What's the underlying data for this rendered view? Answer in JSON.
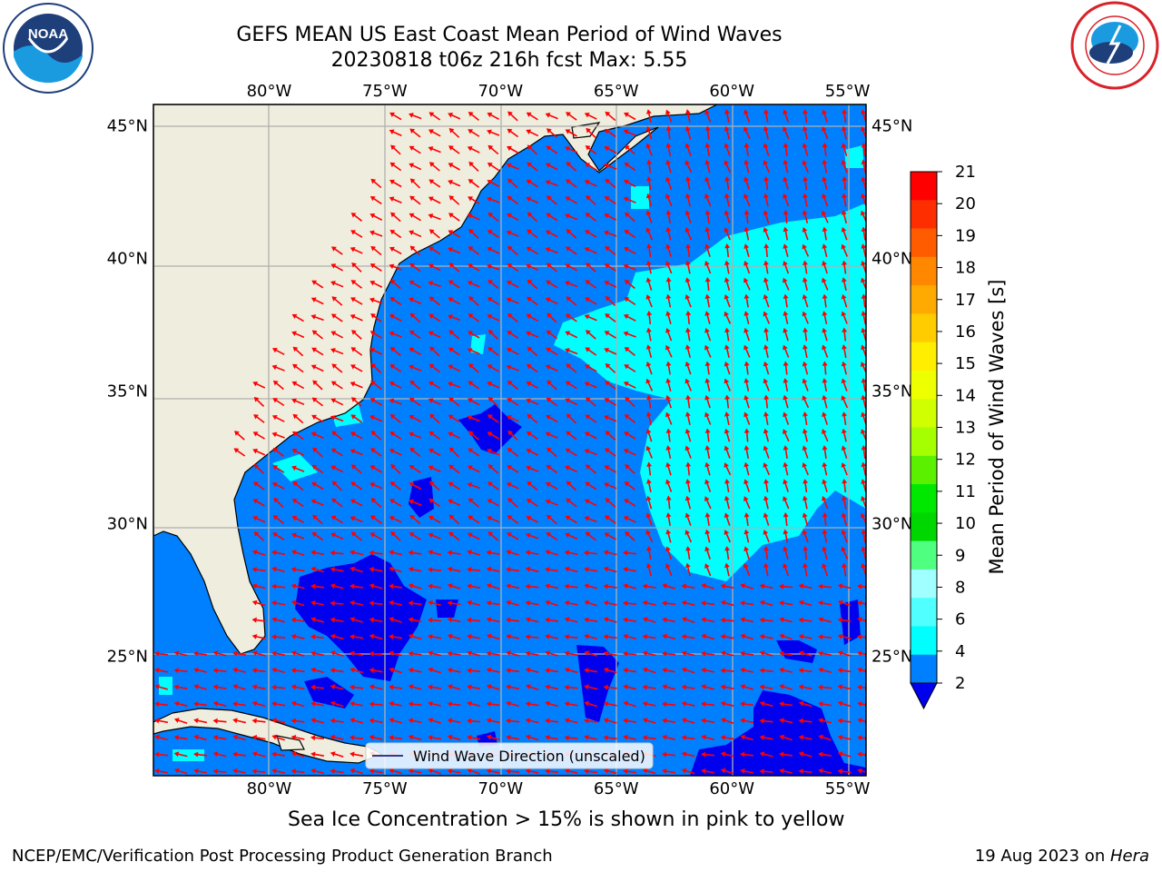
{
  "header": {
    "title_line1": "GEFS MEAN US East Coast Mean Period of Wind Waves",
    "title_line2": "20230818 t06z 216h fcst   Max: 5.55"
  },
  "logos": {
    "left": {
      "icon": "noaa-logo",
      "text": "NOAA",
      "ring_text": "NATIONAL OCEANIC AND ATMOSPHERIC ADMINISTRATION · U.S. DEPARTMENT OF COMMERCE"
    },
    "right": {
      "icon": "nws-logo",
      "ring_text": "NATIONAL WEATHER SERVICE"
    }
  },
  "map": {
    "projection": "PlateCarree",
    "extent": {
      "lon_min": -85,
      "lon_max": -54.2,
      "lat_min": 20.5,
      "lat_max": 45.8
    },
    "lon_ticks": [
      {
        "value": -80,
        "label": "80°W"
      },
      {
        "value": -75,
        "label": "75°W"
      },
      {
        "value": -70,
        "label": "70°W"
      },
      {
        "value": -65,
        "label": "65°W"
      },
      {
        "value": -60,
        "label": "60°W"
      },
      {
        "value": -55,
        "label": "55°W"
      }
    ],
    "lat_ticks": [
      {
        "value": 45,
        "label": "45°N"
      },
      {
        "value": 40,
        "label": "40°N"
      },
      {
        "value": 35,
        "label": "35°N"
      },
      {
        "value": 30,
        "label": "30°N"
      },
      {
        "value": 25,
        "label": "25°N"
      }
    ],
    "gridlines": true,
    "colors": {
      "land": "#efedde",
      "ocean_2_4": "#0080ff",
      "ocean_lt2": "#0000ee",
      "ocean_4_6": "#00ffff",
      "arrow": "#ff0000",
      "grid": "#b0b0b0"
    },
    "legend": {
      "label": "Wind Wave Direction (unscaled)",
      "placement": "bottom-center"
    }
  },
  "colorbar": {
    "label": "Mean Period of Wind Waves [s]",
    "ticks": [
      "21",
      "20",
      "19",
      "18",
      "17",
      "16",
      "15",
      "14",
      "13",
      "12",
      "11",
      "10",
      "9",
      "8",
      "6",
      "4",
      "2"
    ],
    "extend": "min",
    "colors": [
      "#ff0000",
      "#ff2e00",
      "#ff5c00",
      "#ff8800",
      "#ffaa00",
      "#ffcc00",
      "#ffee00",
      "#eeff00",
      "#cfff00",
      "#a6ff00",
      "#5bef00",
      "#00e800",
      "#00d700",
      "#4fff80",
      "#a0ffff",
      "#50ffff",
      "#00ffff",
      "#0080ff"
    ],
    "below_color": "#0000ee"
  },
  "footer": {
    "note": "Sea Ice Concentration > 15% is shown in pink to yellow",
    "credit": "NCEP/EMC/Verification Post Processing Product Generation Branch",
    "date": "19 Aug 2023 on ",
    "machine": "Hera"
  }
}
